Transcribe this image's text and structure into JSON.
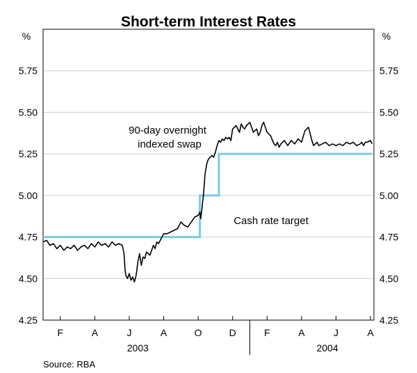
{
  "chart_data": {
    "type": "line",
    "title": "Short-term Interest Rates",
    "y_unit_left": "%",
    "y_unit_right": "%",
    "ylim": [
      4.25,
      6.0
    ],
    "yticks": [
      "4.25",
      "4.50",
      "4.75",
      "5.00",
      "5.25",
      "5.50",
      "5.75"
    ],
    "ytick_values": [
      4.25,
      4.5,
      4.75,
      5.0,
      5.25,
      5.5,
      5.75
    ],
    "xlim": [
      0,
      19.2
    ],
    "month_labels": [
      "F",
      "A",
      "J",
      "A",
      "O",
      "D",
      "F",
      "A",
      "J",
      "A"
    ],
    "month_positions": [
      1,
      3,
      5,
      7,
      9,
      11,
      13,
      15,
      17,
      19
    ],
    "year_labels": [
      "2003",
      "2004"
    ],
    "year_positions": [
      5.5,
      16.5
    ],
    "annotations": {
      "swap": [
        "90-day overnight",
        "indexed swap"
      ],
      "cash": "Cash rate target"
    },
    "source": "Source: RBA",
    "series": [
      {
        "name": "90-day overnight indexed swap",
        "x": [
          0,
          0.2,
          0.4,
          0.6,
          0.8,
          1.0,
          1.2,
          1.4,
          1.6,
          1.8,
          2.0,
          2.2,
          2.4,
          2.6,
          2.8,
          3.0,
          3.2,
          3.4,
          3.6,
          3.8,
          4.0,
          4.2,
          4.4,
          4.6,
          4.7,
          4.75,
          4.8,
          4.9,
          5.0,
          5.1,
          5.2,
          5.3,
          5.4,
          5.5,
          5.6,
          5.7,
          5.8,
          5.9,
          6.0,
          6.1,
          6.2,
          6.3,
          6.4,
          6.5,
          6.6,
          6.7,
          6.8,
          6.9,
          7.0,
          7.2,
          7.4,
          7.6,
          7.8,
          8.0,
          8.2,
          8.4,
          8.6,
          8.8,
          9.0,
          9.1,
          9.15,
          9.2,
          9.25,
          9.3,
          9.35,
          9.4,
          9.5,
          9.6,
          9.7,
          9.8,
          9.9,
          10.0,
          10.1,
          10.2,
          10.3,
          10.4,
          10.5,
          10.6,
          10.7,
          10.8,
          10.9,
          11.0,
          11.2,
          11.4,
          11.5,
          11.6,
          11.7,
          11.8,
          12.0,
          12.2,
          12.4,
          12.5,
          12.6,
          12.7,
          12.8,
          12.9,
          13.0,
          13.2,
          13.4,
          13.5,
          13.6,
          13.7,
          13.8,
          14.0,
          14.2,
          14.4,
          14.6,
          14.8,
          15.0,
          15.2,
          15.4,
          15.6,
          15.7,
          15.8,
          15.9,
          16.0,
          16.2,
          16.4,
          16.6,
          16.8,
          17.0,
          17.2,
          17.4,
          17.6,
          17.8,
          18.0,
          18.2,
          18.4,
          18.5,
          18.6,
          18.7,
          18.8,
          19.0,
          19.1
        ],
        "values": [
          4.72,
          4.73,
          4.7,
          4.71,
          4.68,
          4.7,
          4.67,
          4.69,
          4.68,
          4.7,
          4.67,
          4.69,
          4.7,
          4.68,
          4.71,
          4.69,
          4.72,
          4.7,
          4.71,
          4.69,
          4.72,
          4.7,
          4.71,
          4.7,
          4.65,
          4.56,
          4.52,
          4.5,
          4.53,
          4.49,
          4.51,
          4.48,
          4.52,
          4.6,
          4.65,
          4.58,
          4.63,
          4.62,
          4.66,
          4.65,
          4.64,
          4.67,
          4.7,
          4.68,
          4.72,
          4.71,
          4.73,
          4.75,
          4.77,
          4.77,
          4.78,
          4.79,
          4.8,
          4.84,
          4.82,
          4.81,
          4.84,
          4.87,
          4.88,
          4.9,
          4.86,
          4.9,
          4.95,
          5.0,
          5.06,
          5.13,
          5.19,
          5.22,
          5.23,
          5.24,
          5.23,
          5.26,
          5.3,
          5.33,
          5.32,
          5.34,
          5.33,
          5.35,
          5.34,
          5.35,
          5.33,
          5.4,
          5.42,
          5.38,
          5.43,
          5.41,
          5.4,
          5.42,
          5.44,
          5.38,
          5.4,
          5.36,
          5.38,
          5.42,
          5.44,
          5.41,
          5.38,
          5.36,
          5.31,
          5.3,
          5.32,
          5.29,
          5.31,
          5.33,
          5.3,
          5.33,
          5.31,
          5.34,
          5.32,
          5.39,
          5.41,
          5.33,
          5.3,
          5.31,
          5.32,
          5.3,
          5.31,
          5.32,
          5.3,
          5.31,
          5.3,
          5.31,
          5.3,
          5.32,
          5.31,
          5.32,
          5.3,
          5.31,
          5.32,
          5.3,
          5.32,
          5.32,
          5.33,
          5.31
        ]
      },
      {
        "name": "Cash rate target",
        "x": [
          0,
          9.1,
          9.1,
          10.2,
          10.2,
          19.1
        ],
        "values": [
          4.75,
          4.75,
          5.0,
          5.0,
          5.25,
          5.25
        ]
      }
    ]
  }
}
